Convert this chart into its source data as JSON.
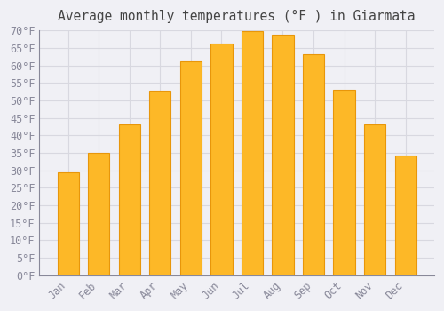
{
  "title": "Average monthly temperatures (°F ) in Giarmata",
  "months": [
    "Jan",
    "Feb",
    "Mar",
    "Apr",
    "May",
    "Jun",
    "Jul",
    "Aug",
    "Sep",
    "Oct",
    "Nov",
    "Dec"
  ],
  "values": [
    29.3,
    34.9,
    43.2,
    52.9,
    61.2,
    66.2,
    69.8,
    68.9,
    63.1,
    53.1,
    43.2,
    34.2
  ],
  "bar_color": "#FDB827",
  "bar_edge_color": "#E8960A",
  "background_color": "#f0f0f5",
  "plot_bg_color": "#f0f0f5",
  "grid_color": "#d8d8e0",
  "tick_color": "#888899",
  "title_color": "#444444",
  "ylim": [
    0,
    70
  ],
  "ytick_step": 5,
  "title_fontsize": 10.5,
  "tick_fontsize": 8.5,
  "font_family": "monospace"
}
